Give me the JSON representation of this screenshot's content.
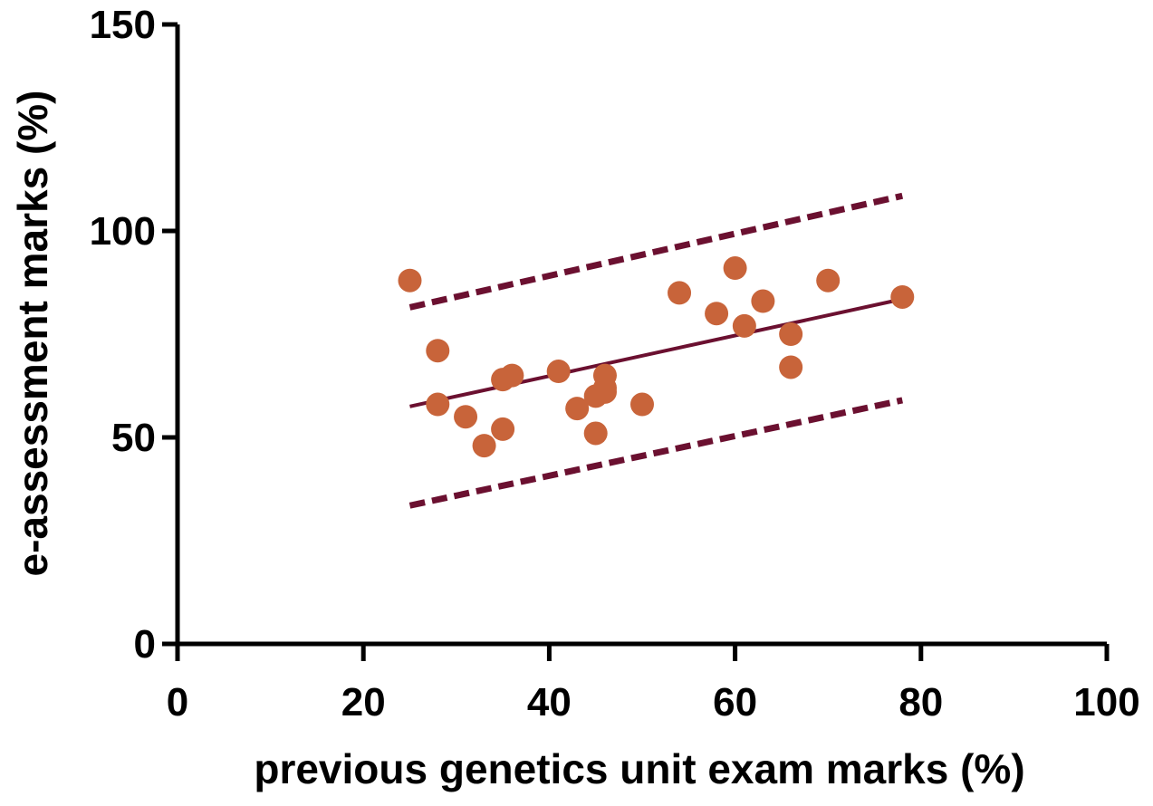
{
  "chart_data": {
    "type": "scatter",
    "title": "",
    "xlabel": "previous genetics unit exam marks (%)",
    "ylabel": "e-assessment marks (%)",
    "xlim": [
      0,
      100
    ],
    "ylim": [
      0,
      150
    ],
    "x_ticks": [
      0,
      20,
      40,
      60,
      80,
      100
    ],
    "y_ticks": [
      0,
      50,
      100,
      150
    ],
    "grid": false,
    "legend": "none",
    "colors": {
      "points": "#c8643a",
      "lines": "#6b1030",
      "axes": "#000000"
    },
    "series": [
      {
        "x": [
          25,
          28,
          28,
          31,
          33,
          35,
          35,
          36,
          41,
          43,
          45,
          45,
          46,
          46,
          46,
          50,
          54,
          58,
          60,
          61,
          63,
          66,
          66,
          70,
          78
        ],
        "y": [
          88,
          71,
          58,
          55,
          48,
          52,
          64,
          65,
          66,
          57,
          51,
          60,
          62,
          65,
          61,
          58,
          85,
          80,
          91,
          77,
          83,
          75,
          67,
          88,
          84
        ]
      }
    ],
    "regression_line": {
      "x": [
        25,
        78
      ],
      "y": [
        57.5,
        83.5
      ]
    },
    "prediction_band_upper": {
      "x": [
        25,
        78
      ],
      "y": [
        81.5,
        108.5
      ]
    },
    "prediction_band_lower": {
      "x": [
        25,
        78
      ],
      "y": [
        33.5,
        59
      ]
    }
  }
}
